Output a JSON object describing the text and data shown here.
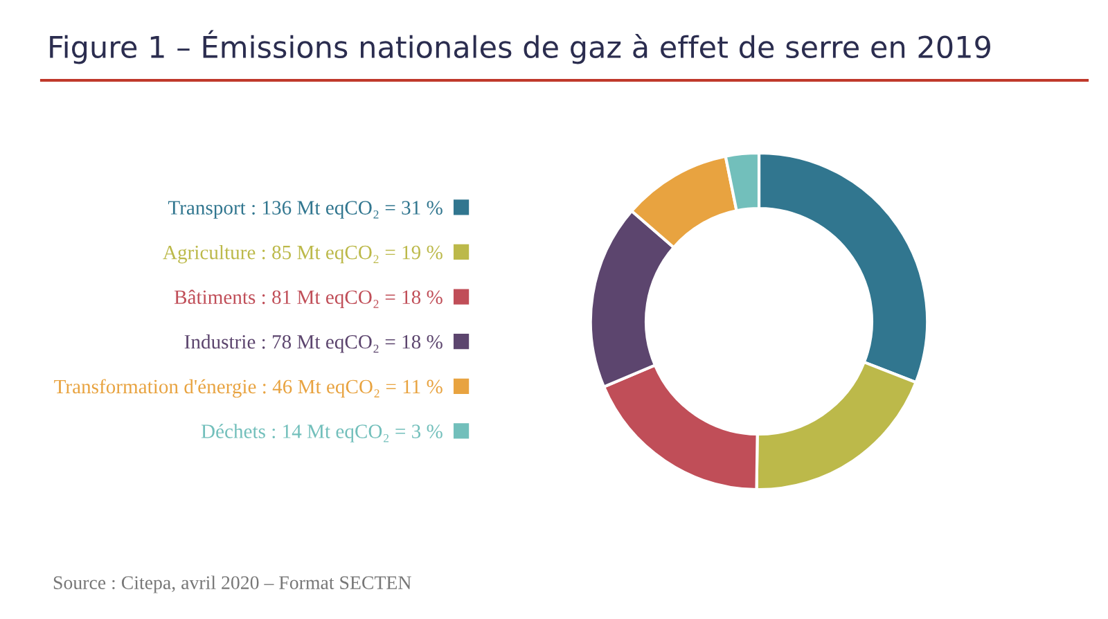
{
  "chart_data": {
    "type": "donut",
    "title": "Figure 1 – Émissions nationales de gaz à effet de serre en 2019",
    "categories": [
      "Transport : 136 Mt eqCO₂ = 31 %",
      "Agriculture : 85 Mt eqCO₂ = 19 %",
      "Bâtiments : 81 Mt eqCO₂ = 18 %",
      "Industrie : 78 Mt eqCO₂ = 18 %",
      "Transformation d'énergie : 46 Mt eqCO₂ = 11 %",
      "Déchets : 14 Mt eqCO₂ = 3 %"
    ],
    "values": [
      136,
      85,
      81,
      78,
      46,
      14
    ],
    "colors": [
      "#31768f",
      "#bcb94a",
      "#c04e58",
      "#5c456e",
      "#e8a340",
      "#72bfbb"
    ],
    "legend": "left",
    "annotations": [
      "Source : Citepa, avril 2020 – Format SECTEN"
    ]
  }
}
